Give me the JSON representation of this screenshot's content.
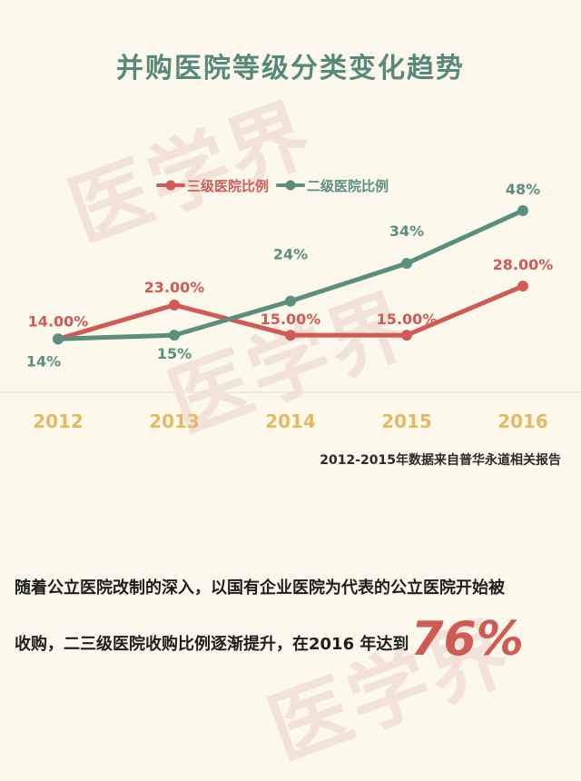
{
  "watermark": "医学界",
  "chart_data": {
    "type": "line",
    "title": "并购医院等级分类变化趋势",
    "categories": [
      "2012",
      "2013",
      "2014",
      "2015",
      "2016"
    ],
    "series": [
      {
        "name": "三级医院比例",
        "color": "#cf5a56",
        "values": [
          14,
          23,
          15,
          15,
          28
        ],
        "labels": [
          "14.00%",
          "23.00%",
          "15.00%",
          "15.00%",
          "28.00%"
        ]
      },
      {
        "name": "二级医院比例",
        "color": "#5a8f80",
        "values": [
          14,
          15,
          24,
          34,
          48
        ],
        "labels": [
          "14%",
          "15%",
          "24%",
          "34%",
          "48%"
        ]
      }
    ],
    "legend": "top-center",
    "grid": false,
    "ylim": [
      0,
      50
    ],
    "xlabel": "",
    "ylabel": "",
    "tick_color": "#e5b964"
  },
  "source": "2012-2015年数据来自普华永道相关报告",
  "summary": {
    "line1": "随着公立医院改制的深入，以国有企业医院为代表的公立医院开始被",
    "line2": "收购，二三级医院收购比例逐渐提升，在2016 年达到",
    "highlight": "76%"
  }
}
